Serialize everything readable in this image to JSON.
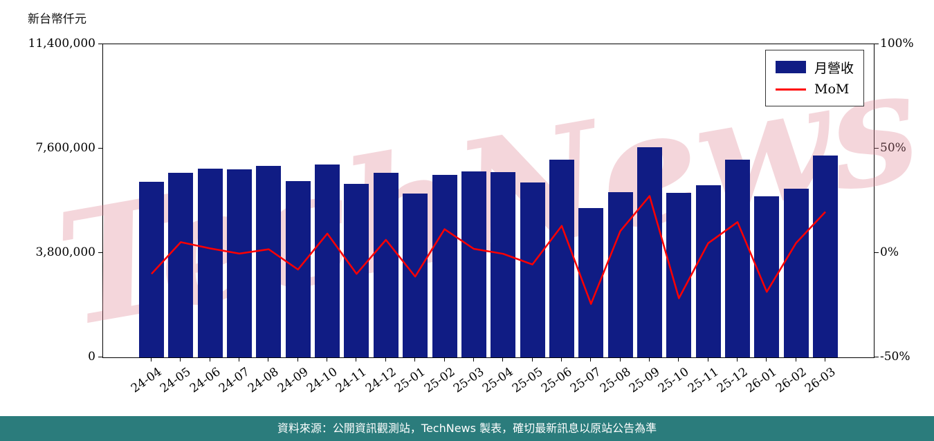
{
  "chart_data": {
    "type": "bar",
    "title": "",
    "left_axis_title": "新台幣仟元",
    "watermark": "TechNews",
    "grid": false,
    "categories": [
      "24-04",
      "24-05",
      "24-06",
      "24-07",
      "24-08",
      "24-09",
      "24-10",
      "24-11",
      "24-12",
      "25-01",
      "25-02",
      "25-03",
      "25-04",
      "25-05",
      "25-06",
      "25-07",
      "25-08",
      "25-09",
      "25-10",
      "25-11",
      "25-12",
      "26-01",
      "26-02",
      "26-03"
    ],
    "series": [
      {
        "name": "月營收",
        "type": "bar",
        "axis": "left",
        "values": [
          6390000,
          6720000,
          6870000,
          6850000,
          6970000,
          6420000,
          7020000,
          6320000,
          6720000,
          5960000,
          6640000,
          6770000,
          6740000,
          6370000,
          7200000,
          5440000,
          6010000,
          7650000,
          5990000,
          6270000,
          7200000,
          5860000,
          6140000,
          7350000
        ]
      },
      {
        "name": "MoM",
        "type": "line",
        "axis": "right",
        "values": [
          -10.0,
          5.2,
          2.2,
          -0.3,
          1.8,
          -7.9,
          9.3,
          -10.0,
          6.3,
          -11.3,
          11.4,
          2.0,
          -0.4,
          -5.5,
          13.0,
          -24.4,
          10.5,
          27.3,
          -21.7,
          4.7,
          14.8,
          -18.6,
          4.8,
          19.7
        ]
      }
    ],
    "left_axis": {
      "min": 0,
      "max": 11400000,
      "tick_values": [
        0,
        3800000,
        7600000,
        11400000
      ],
      "tick_labels": [
        "0",
        "3,800,000",
        "7,600,000",
        "11,400,000"
      ]
    },
    "right_axis": {
      "min": -50,
      "max": 100,
      "tick_values": [
        -50,
        0,
        50,
        100
      ],
      "tick_labels": [
        "-50%",
        "0%",
        "50%",
        "100%"
      ]
    },
    "legend": {
      "position": "upper right",
      "entries": [
        {
          "label": "月營收",
          "type": "bar"
        },
        {
          "label": "MoM",
          "type": "line"
        }
      ]
    },
    "colors": {
      "bar": "#101C84",
      "line": "#FF0000",
      "watermark": "#DE8291",
      "footer_bg": "#2B7C7C"
    }
  },
  "footer": {
    "text": "資料來源：公開資訊觀測站，TechNews 製表，確切最新訊息以原站公告為準"
  }
}
